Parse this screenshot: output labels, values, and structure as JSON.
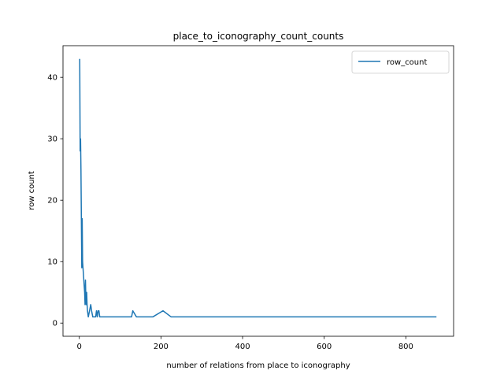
{
  "chart_data": {
    "type": "line",
    "title": "place_to_iconography_count_counts",
    "xlabel": "number of relations from place to iconography",
    "ylabel": "row count",
    "xlim": [
      -40,
      917
    ],
    "ylim": [
      -2.15,
      45.15
    ],
    "xticks": [
      0,
      200,
      400,
      600,
      800
    ],
    "yticks": [
      0,
      10,
      20,
      30,
      40
    ],
    "grid": false,
    "legend_position": "top-right",
    "series": [
      {
        "name": "row_count",
        "color": "#1f77b4",
        "x": [
          1,
          2,
          3,
          4,
          5,
          6,
          7,
          8,
          9,
          10,
          11,
          12,
          13,
          14,
          15,
          16,
          17,
          18,
          19,
          20,
          22,
          25,
          28,
          30,
          33,
          36,
          40,
          42,
          44,
          46,
          48,
          50,
          52,
          55,
          60,
          70,
          80,
          100,
          120,
          128,
          131,
          140,
          160,
          180,
          205,
          225,
          300,
          400,
          500,
          600,
          700,
          800,
          875
        ],
        "y": [
          43,
          28,
          30,
          25,
          17,
          9,
          17,
          10,
          9,
          8,
          7,
          6,
          5,
          3,
          7,
          4,
          3,
          5,
          3,
          2,
          1,
          2,
          3,
          2,
          1,
          1,
          1,
          2,
          1,
          2,
          2,
          1,
          1,
          1,
          1,
          1,
          1,
          1,
          1,
          1,
          2,
          1,
          1,
          1,
          2,
          1,
          1,
          1,
          1,
          1,
          1,
          1,
          1
        ]
      }
    ]
  }
}
